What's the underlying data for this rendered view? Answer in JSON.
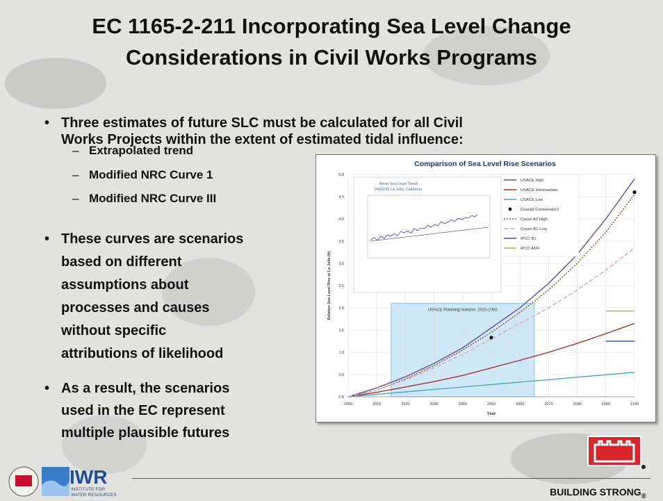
{
  "title_lines": [
    "EC 1165-2-211 Incorporating Sea Level Change",
    "Considerations in Civil Works Programs"
  ],
  "bullets": [
    {
      "lines": [
        "Three estimates of future SLC must be calculated for all Civil",
        "Works Projects within the extent of estimated tidal influence:"
      ],
      "sub": [
        "Extrapolated  trend",
        "Modified NRC Curve 1",
        "Modified NRC Curve III"
      ]
    },
    {
      "lines": [
        "These curves are scenarios",
        "based on  different",
        "assumptions about",
        "processes and causes",
        "without specific",
        "attributions of likelihood"
      ]
    },
    {
      "lines": [
        "As a result, the scenarios",
        "used in the EC represent",
        "multiple plausible futures"
      ]
    }
  ],
  "chart_data": {
    "type": "line",
    "title": "Comparison of Sea Level Rise Scenarios",
    "xlabel": "Year",
    "ylabel": "Relative Sea Level Rise at La Jolla (ft)",
    "annotation": {
      "text": "USACE Planning Horizon, 2015-2065",
      "x0": 2015,
      "x1": 2065,
      "y1": 2.1,
      "color": "#cfe8f7"
    },
    "inset_title": [
      "Mean Sea Level Trend",
      "9410230 La Jolla, California"
    ],
    "x": [
      2000,
      2010,
      2020,
      2030,
      2040,
      2050,
      2060,
      2070,
      2080,
      2090,
      2100
    ],
    "xlim": [
      2000,
      2100
    ],
    "xticks": [
      2000,
      2010,
      2020,
      2030,
      2040,
      2050,
      2060,
      2070,
      2080,
      2090,
      2100
    ],
    "ylim": [
      0,
      5
    ],
    "yticks": [
      {
        "value": 0,
        "label": "0.0"
      },
      {
        "value": 0.5,
        "label": "0.5"
      },
      {
        "value": 1,
        "label": "1.0"
      },
      {
        "value": 1.5,
        "label": "1.5"
      },
      {
        "value": 2,
        "label": "2.0"
      },
      {
        "value": 2.5,
        "label": "2.5"
      },
      {
        "value": 3,
        "label": "3.0"
      },
      {
        "value": 3.5,
        "label": "3.5"
      },
      {
        "value": 4,
        "label": "4.0"
      },
      {
        "value": 4.5,
        "label": "4.5"
      },
      {
        "value": 5,
        "label": "5.0"
      }
    ],
    "grid": true,
    "legend": "upper-right",
    "series": [
      {
        "name": "USACE High",
        "color": "#5d4f9e",
        "style": "solid",
        "values": [
          0,
          0.2,
          0.45,
          0.75,
          1.1,
          1.55,
          2.0,
          2.55,
          3.2,
          4.0,
          4.9
        ]
      },
      {
        "name": "USACE Intermediate",
        "color": "#a3302c",
        "style": "solid",
        "values": [
          0,
          0.1,
          0.22,
          0.34,
          0.48,
          0.65,
          0.82,
          1.0,
          1.2,
          1.42,
          1.65
        ]
      },
      {
        "name": "USACE Low",
        "color": "#4ba4c2",
        "style": "solid",
        "values": [
          0,
          0.055,
          0.11,
          0.165,
          0.22,
          0.275,
          0.33,
          0.385,
          0.44,
          0.495,
          0.55
        ]
      },
      {
        "name": "Coastal Conservancy",
        "color": "#000000",
        "style": "marker",
        "values": [
          null,
          null,
          null,
          null,
          null,
          1.33,
          null,
          null,
          null,
          null,
          4.6
        ]
      },
      {
        "name": "Cayan A2 High",
        "color": "#8b4a14",
        "style": "dotted",
        "values": [
          0,
          0.15,
          0.4,
          0.7,
          1.05,
          1.45,
          1.9,
          2.4,
          3.0,
          3.7,
          4.55
        ]
      },
      {
        "name": "Cayan B1 Low",
        "color": "#e3a2b4",
        "style": "dashed",
        "values": [
          0,
          0.15,
          0.38,
          0.65,
          0.95,
          1.3,
          1.65,
          2.0,
          2.4,
          2.85,
          3.35
        ]
      },
      {
        "name": "IPCC B1",
        "color": "#2f5fa8",
        "style": "solid",
        "values": [
          null,
          null,
          null,
          null,
          null,
          null,
          null,
          null,
          null,
          1.25,
          1.25
        ]
      },
      {
        "name": "IPCC A1FI",
        "color": "#9bbb3a",
        "style": "solid",
        "values": [
          null,
          null,
          null,
          null,
          null,
          null,
          null,
          null,
          null,
          1.93,
          1.93
        ]
      }
    ]
  },
  "footer": {
    "logo_text": "IWR",
    "logo_subtext": [
      "INSTITUTE FOR",
      "WATER RESOURCES"
    ],
    "tagline": "BUILDING STRONG",
    "tagline_mark": "®"
  }
}
